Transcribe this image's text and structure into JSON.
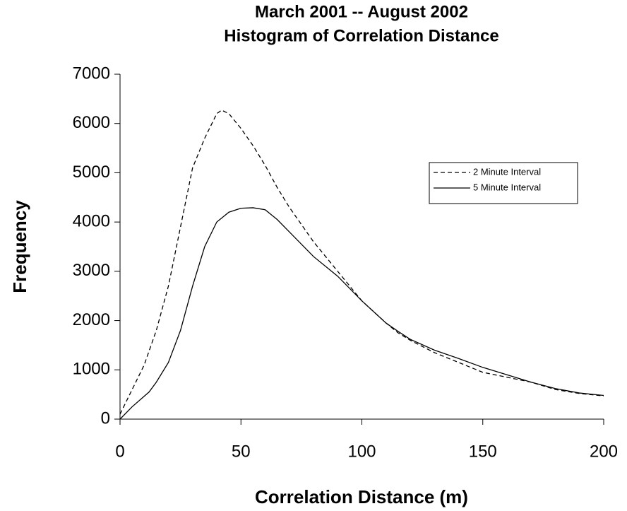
{
  "chart_data": {
    "type": "line",
    "title": [
      "March 2001 -- August 2002",
      "Histogram of Correlation Distance"
    ],
    "x_label": "Correlation Distance (m)",
    "y_label": "Frequency",
    "xlim": [
      0,
      200
    ],
    "xticks": [
      0,
      50,
      100,
      150,
      200
    ],
    "ylim": [
      0,
      7000
    ],
    "yticks": [
      0,
      1000,
      2000,
      3000,
      4000,
      5000,
      6000,
      7000
    ],
    "grid": false,
    "legend": "right",
    "series": [
      {
        "name": "2 Minute Interval",
        "color": "#000000",
        "linestyle": "dashed",
        "x": [
          0,
          5,
          10,
          15,
          20,
          25,
          30,
          35,
          40,
          42,
          45,
          50,
          55,
          60,
          65,
          70,
          80,
          90,
          100,
          110,
          115,
          120,
          130,
          140,
          150,
          160,
          170,
          180,
          190,
          200
        ],
        "values": [
          100,
          600,
          1100,
          1800,
          2700,
          3900,
          5100,
          5700,
          6200,
          6270,
          6200,
          5900,
          5550,
          5150,
          4700,
          4300,
          3600,
          3000,
          2400,
          1950,
          1750,
          1600,
          1350,
          1150,
          950,
          850,
          750,
          600,
          520,
          470
        ]
      },
      {
        "name": "5 Minute Interval",
        "color": "#000000",
        "linestyle": "solid",
        "x": [
          0,
          5,
          12,
          15,
          20,
          25,
          30,
          35,
          40,
          45,
          50,
          55,
          60,
          65,
          70,
          80,
          90,
          100,
          110,
          115,
          120,
          130,
          140,
          150,
          160,
          170,
          180,
          190,
          200
        ],
        "values": [
          0,
          250,
          550,
          750,
          1150,
          1800,
          2700,
          3500,
          4000,
          4200,
          4280,
          4290,
          4250,
          4050,
          3800,
          3300,
          2900,
          2400,
          1950,
          1780,
          1620,
          1400,
          1230,
          1050,
          900,
          750,
          620,
          530,
          480
        ]
      }
    ]
  }
}
